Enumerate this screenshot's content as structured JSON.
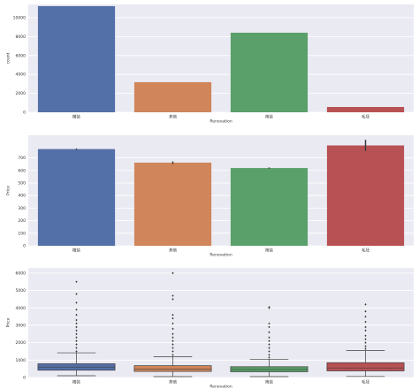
{
  "chart_data": [
    {
      "type": "bar",
      "xlabel": "Renovation",
      "ylabel": "count",
      "categories": [
        "精装",
        "其他",
        "简装",
        "毛坯"
      ],
      "values": [
        11220,
        3180,
        8410,
        560
      ],
      "colors": [
        "#5470a8",
        "#d0855a",
        "#5aa06a",
        "#b85154"
      ],
      "ylim": [
        0,
        11400
      ],
      "yticks": [
        0,
        2000,
        4000,
        6000,
        8000,
        10000
      ],
      "grid": true
    },
    {
      "type": "bar",
      "xlabel": "Renovation",
      "ylabel": "Price",
      "categories": [
        "精装",
        "其他",
        "简装",
        "毛坯"
      ],
      "values": [
        770,
        662,
        619,
        799
      ],
      "errors": [
        5,
        10,
        5,
        45
      ],
      "colors": [
        "#5470a8",
        "#d0855a",
        "#5aa06a",
        "#b85154"
      ],
      "ylim": [
        0,
        880
      ],
      "yticks": [
        0,
        100,
        200,
        300,
        400,
        500,
        600,
        700
      ],
      "grid": true
    },
    {
      "type": "box",
      "xlabel": "Renovation",
      "ylabel": "Price",
      "categories": [
        "精装",
        "其他",
        "简装",
        "毛坯"
      ],
      "boxes": [
        {
          "whislo": 100,
          "q1": 420,
          "med": 600,
          "q3": 790,
          "whishi": 1420,
          "fliers": [
            1500,
            1700,
            1900,
            2100,
            2300,
            2500,
            2700,
            2900,
            3100,
            3300,
            3600,
            3900,
            4300,
            4800,
            5500
          ]
        },
        {
          "whislo": 50,
          "q1": 350,
          "med": 480,
          "q3": 680,
          "whishi": 1200,
          "fliers": [
            1300,
            1500,
            1700,
            1900,
            2100,
            2300,
            2500,
            2800,
            3100,
            3400,
            3600,
            4500,
            4700,
            6000
          ]
        },
        {
          "whislo": 50,
          "q1": 330,
          "med": 460,
          "q3": 620,
          "whishi": 1050,
          "fliers": [
            1150,
            1300,
            1500,
            1700,
            1900,
            2100,
            2300,
            2600,
            2900,
            3100,
            4000,
            4050
          ]
        },
        {
          "whislo": 60,
          "q1": 380,
          "med": 550,
          "q3": 850,
          "whishi": 1550,
          "fliers": [
            1650,
            1800,
            2000,
            2200,
            2400,
            2700,
            2900,
            3200,
            3500,
            3800,
            4200
          ]
        }
      ],
      "colors": [
        "#5470a8",
        "#d0855a",
        "#5aa06a",
        "#b85154"
      ],
      "ylim": [
        0,
        6300
      ],
      "yticks": [
        0,
        1000,
        2000,
        3000,
        4000,
        5000,
        6000
      ],
      "grid": true
    }
  ]
}
